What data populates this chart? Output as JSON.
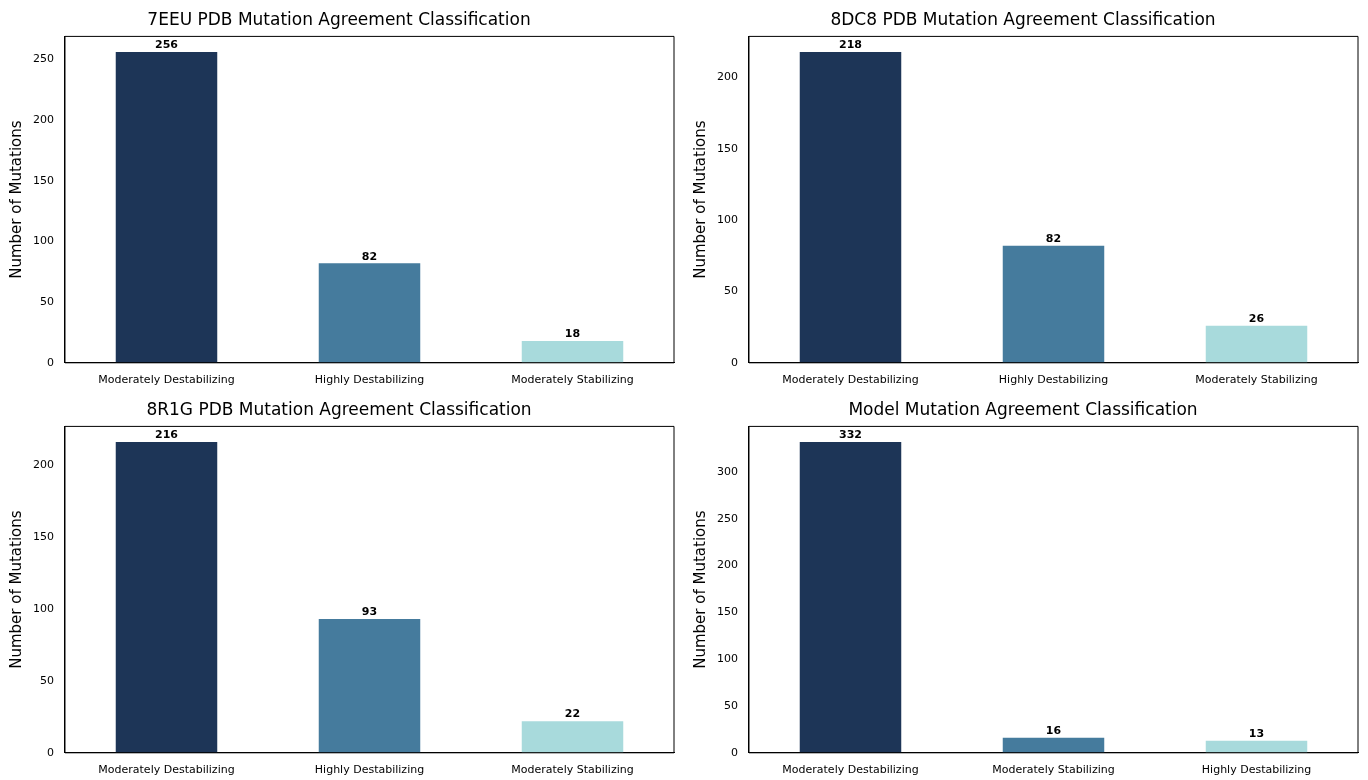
{
  "chart_data": [
    {
      "type": "bar",
      "title": "7EEU PDB Mutation Agreement Classification",
      "ylabel": "Number of Mutations",
      "categories": [
        "Moderately Destabilizing",
        "Highly Destabilizing",
        "Moderately Stabilizing"
      ],
      "values": [
        256,
        82,
        18
      ],
      "colors": [
        "#1d3557",
        "#457b9d",
        "#a8dadc"
      ],
      "ylim": [
        0,
        268.8
      ],
      "yticks": [
        0,
        50,
        100,
        150,
        200,
        250
      ],
      "data_labels": true,
      "grid": false,
      "legend": false
    },
    {
      "type": "bar",
      "title": "8DC8 PDB Mutation Agreement Classification",
      "ylabel": "Number of Mutations",
      "categories": [
        "Moderately Destabilizing",
        "Highly Destabilizing",
        "Moderately Stabilizing"
      ],
      "values": [
        218,
        82,
        26
      ],
      "colors": [
        "#1d3557",
        "#457b9d",
        "#a8dadc"
      ],
      "ylim": [
        0,
        228.9
      ],
      "yticks": [
        0,
        50,
        100,
        150,
        200
      ],
      "data_labels": true,
      "grid": false,
      "legend": false
    },
    {
      "type": "bar",
      "title": "8R1G PDB Mutation Agreement Classification",
      "ylabel": "Number of Mutations",
      "categories": [
        "Moderately Destabilizing",
        "Highly Destabilizing",
        "Moderately Stabilizing"
      ],
      "values": [
        216,
        93,
        22
      ],
      "colors": [
        "#1d3557",
        "#457b9d",
        "#a8dadc"
      ],
      "ylim": [
        0,
        226.8
      ],
      "yticks": [
        0,
        50,
        100,
        150,
        200
      ],
      "data_labels": true,
      "grid": false,
      "legend": false
    },
    {
      "type": "bar",
      "title": "Model Mutation Agreement Classification",
      "ylabel": "Number of Mutations",
      "categories": [
        "Moderately Destabilizing",
        "Moderately Stabilizing",
        "Highly Destabilizing"
      ],
      "values": [
        332,
        16,
        13
      ],
      "colors": [
        "#1d3557",
        "#457b9d",
        "#a8dadc"
      ],
      "ylim": [
        0,
        348.6
      ],
      "yticks": [
        0,
        50,
        100,
        150,
        200,
        250,
        300
      ],
      "data_labels": true,
      "grid": false,
      "legend": false
    }
  ]
}
